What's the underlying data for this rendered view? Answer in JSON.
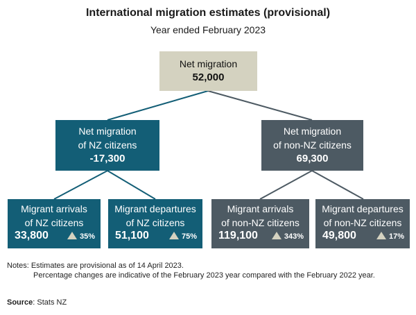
{
  "header": {
    "title": "International migration estimates (provisional)",
    "subtitle": "Year ended February 2023"
  },
  "root": {
    "label": "Net migration",
    "value": "52,000"
  },
  "nz": {
    "line1": "Net migration",
    "line2": "of NZ citizens",
    "value": "-17,300"
  },
  "non_nz": {
    "line1": "Net migration",
    "line2": "of non-NZ citizens",
    "value": "69,300"
  },
  "leaves": [
    {
      "line1": "Migrant arrivals",
      "line2": "of NZ citizens",
      "value": "33,800",
      "change": "35%"
    },
    {
      "line1": "Migrant departures",
      "line2": "of NZ citizens",
      "value": "51,100",
      "change": "75%"
    },
    {
      "line1": "Migrant arrivals",
      "line2": "of non-NZ citizens",
      "value": "119,100",
      "change": "343%"
    },
    {
      "line1": "Migrant departures",
      "line2": "of non-NZ citizens",
      "value": "49,800",
      "change": "17%"
    }
  ],
  "colors": {
    "root": "#d4d2c0",
    "nz": "#135e76",
    "non_nz": "#4d5a63"
  },
  "icons": {
    "change": "up-triangle-icon"
  },
  "notes": {
    "line1": "Notes: Estimates are provisional as of 14 April 2023.",
    "line2": "Percentage changes are indicative of the February 2023 year compared with the February 2022 year."
  },
  "source": {
    "label": "Source",
    "text": ": Stats NZ"
  }
}
